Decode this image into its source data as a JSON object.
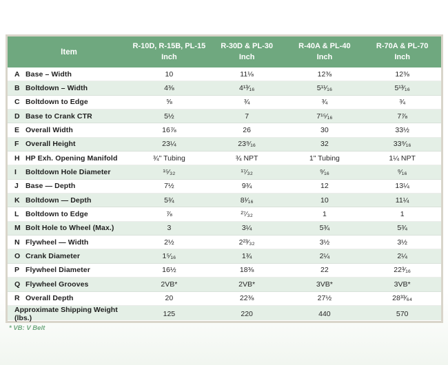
{
  "colors": {
    "header_green": "#6FA87F",
    "alt_row_green": "#E4EFE6",
    "frame_border": "#D9D5CA",
    "footnote_green": "#6FA87F"
  },
  "table": {
    "item_header": "Item",
    "columns": [
      {
        "model": "R-10D, R-15B, PL-15",
        "unit": "Inch"
      },
      {
        "model": "R-30D & PL-30",
        "unit": "Inch"
      },
      {
        "model": "R-40A & PL-40",
        "unit": "Inch"
      },
      {
        "model": "R-70A & PL-70",
        "unit": "Inch"
      }
    ],
    "rows": [
      {
        "letter": "A",
        "label": "Base – Width",
        "values": [
          "10",
          "11⅛",
          "12⅜",
          "12⅜"
        ]
      },
      {
        "letter": "B",
        "label": "Boltdown – Width",
        "values": [
          "4⅜",
          "4¹³⁄₁₆",
          "5¹¹⁄₁₆",
          "5¹³⁄₁₆"
        ]
      },
      {
        "letter": "C",
        "label": "Boltdown to Edge",
        "values": [
          "⅝",
          "¾",
          "¾",
          "¾"
        ]
      },
      {
        "letter": "D",
        "label": "Base to Crank CTR",
        "values": [
          "5½",
          "7",
          "7¹⁵⁄₁₆",
          "7⅞"
        ]
      },
      {
        "letter": "E",
        "label": "Overall Width",
        "values": [
          "16⅞",
          "26",
          "30",
          "33½"
        ]
      },
      {
        "letter": "F",
        "label": "Overall Height",
        "values": [
          "23¼",
          "23⁹⁄₁₆",
          "32",
          "33⁹⁄₁₆"
        ]
      },
      {
        "letter": "H",
        "label": "HP Exh. Opening Manifold",
        "values": [
          "¾\" Tubing",
          "¾ NPT",
          "1\" Tubing",
          "1¼ NPT"
        ]
      },
      {
        "letter": "I",
        "label": "Boltdown Hole Diameter",
        "values": [
          "¹⁵⁄₃₂",
          "¹⁷⁄₃₂",
          "⁹⁄₁₆",
          "⁹⁄₁₆"
        ]
      },
      {
        "letter": "J",
        "label": "Base — Depth",
        "values": [
          "7½",
          "9¾",
          "12",
          "13¼"
        ]
      },
      {
        "letter": "K",
        "label": "Boltdown — Depth",
        "values": [
          "5¾",
          "8¹⁄₁₆",
          "10",
          "11¼"
        ]
      },
      {
        "letter": "L",
        "label": "Boltdown to Edge",
        "values": [
          "⅞",
          "²⁷⁄₃₂",
          "1",
          "1"
        ]
      },
      {
        "letter": "M",
        "label": "Bolt Hole to Wheel (Max.)",
        "values": [
          "3",
          "3¼",
          "5¾",
          "5¾"
        ]
      },
      {
        "letter": "N",
        "label": "Flywheel — Width",
        "values": [
          "2½",
          "2²³⁄₃₂",
          "3½",
          "3½"
        ]
      },
      {
        "letter": "O",
        "label": "Crank Diameter",
        "values": [
          "1⁵⁄₁₆",
          "1¾",
          "2¼",
          "2¼"
        ]
      },
      {
        "letter": "P",
        "label": "Flywheel Diameter",
        "values": [
          "16½",
          "18⅜",
          "22",
          "22³⁄₁₆"
        ]
      },
      {
        "letter": "Q",
        "label": "Flywheel Grooves",
        "values": [
          "2VB*",
          "2VB*",
          "3VB*",
          "3VB*"
        ]
      },
      {
        "letter": "R",
        "label": "Overall Depth",
        "values": [
          "20",
          "22⅜",
          "27½",
          "28³³⁄₆₄"
        ]
      }
    ],
    "footer": {
      "label": "Approximate Shipping Weight (lbs.)",
      "values": [
        "125",
        "220",
        "440",
        "570"
      ]
    },
    "footnote": "* VB: V Belt"
  }
}
